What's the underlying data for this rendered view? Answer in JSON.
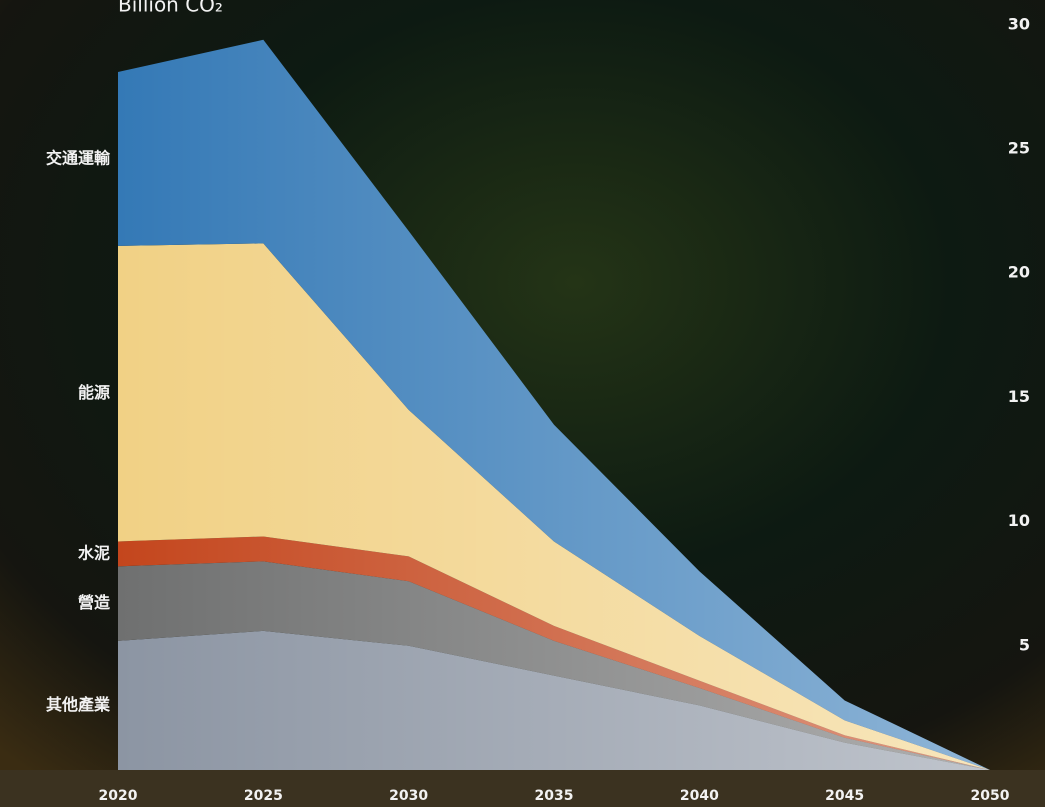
{
  "chart_data": {
    "type": "stacked-area",
    "title": "Billion CO₂",
    "x": [
      2020,
      2025,
      2030,
      2035,
      2040,
      2045,
      2050
    ],
    "xlim": [
      2020,
      2050
    ],
    "xticks": [
      2020,
      2025,
      2030,
      2035,
      2040,
      2045,
      2050
    ],
    "ylim": [
      0,
      31
    ],
    "yticks": [
      5,
      10,
      15,
      20,
      25,
      30
    ],
    "series": [
      {
        "name": "其他產業",
        "color": "#8c95a3",
        "values": [
          5.2,
          5.6,
          5.0,
          3.8,
          2.6,
          1.1,
          0
        ]
      },
      {
        "name": "營造",
        "color": "#6f7070",
        "values": [
          3.0,
          2.8,
          2.6,
          1.4,
          0.7,
          0.2,
          0
        ]
      },
      {
        "name": "水泥",
        "color": "#c4461d",
        "values": [
          1.0,
          1.0,
          1.0,
          0.6,
          0.3,
          0.1,
          0
        ]
      },
      {
        "name": "能源",
        "color": "#f1d185",
        "values": [
          11.9,
          11.8,
          5.9,
          3.4,
          1.8,
          0.6,
          0
        ]
      },
      {
        "name": "交通運輸",
        "color": "#3479b6",
        "values": [
          7.0,
          8.2,
          7.2,
          4.7,
          2.6,
          0.8,
          0
        ]
      }
    ]
  }
}
